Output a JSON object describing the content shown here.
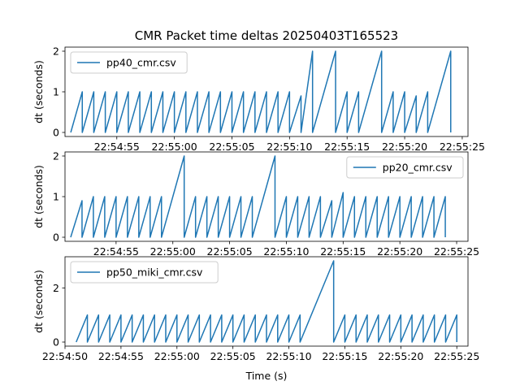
{
  "title": "CMR Packet time deltas 20250403T165523",
  "xlabel": "Time (s)",
  "colors": {
    "series": "#1f77b4",
    "axes": "#000000",
    "background": "#ffffff"
  },
  "chart_data": [
    {
      "type": "line",
      "ylabel": "dt (seconds)",
      "legend_placement": "upper-left",
      "series": [
        {
          "name": "pp40_cmr.csv",
          "x": [
            "22:54:51",
            "22:54:52",
            "22:54:52",
            "22:54:53",
            "22:54:53",
            "22:54:54",
            "22:54:54",
            "22:54:55",
            "22:54:55",
            "22:54:56",
            "22:54:56",
            "22:54:57",
            "22:54:57",
            "22:54:58",
            "22:54:58",
            "22:54:59",
            "22:54:59",
            "22:55:00",
            "22:55:00",
            "22:55:01",
            "22:55:01",
            "22:55:02",
            "22:55:02",
            "22:55:03",
            "22:55:03",
            "22:55:04",
            "22:55:04",
            "22:55:05",
            "22:55:05",
            "22:55:06",
            "22:55:06",
            "22:55:07",
            "22:55:07",
            "22:55:08",
            "22:55:08",
            "22:55:09",
            "22:55:09",
            "22:55:10",
            "22:55:10",
            "22:55:11",
            "22:55:11",
            "22:55:12",
            "22:55:12",
            "22:55:14",
            "22:55:14",
            "22:55:15",
            "22:55:15",
            "22:55:16",
            "22:55:16",
            "22:55:18",
            "22:55:18",
            "22:55:19",
            "22:55:19",
            "22:55:20",
            "22:55:20",
            "22:55:21",
            "22:55:21",
            "22:55:22",
            "22:55:22",
            "22:55:24",
            "22:55:24"
          ],
          "y": [
            0,
            1.0,
            0,
            1.0,
            0,
            1.0,
            0,
            1.0,
            0,
            1.0,
            0,
            1.0,
            0,
            1.0,
            0,
            1.0,
            0,
            1.0,
            0,
            1.0,
            0,
            1.0,
            0,
            1.0,
            0,
            1.0,
            0,
            1.0,
            0,
            1.0,
            0,
            1.0,
            0,
            1.0,
            0,
            1.0,
            0,
            1.0,
            0,
            0.9,
            0,
            2.0,
            0,
            2.0,
            0,
            1.0,
            0,
            1.0,
            0,
            2.0,
            0,
            1.0,
            0,
            1.0,
            0,
            0.9,
            0,
            1.0,
            0,
            2.0,
            0
          ]
        }
      ],
      "xlim": [
        "22:54:50.5",
        "22:55:25.5"
      ],
      "xticks": [
        "22:54:55",
        "22:55:00",
        "22:55:05",
        "22:55:10",
        "22:55:15",
        "22:55:20",
        "22:55:25"
      ],
      "ylim": [
        -0.1,
        2.1
      ],
      "yticks": [
        0,
        1,
        2
      ]
    },
    {
      "type": "line",
      "ylabel": "dt (seconds)",
      "legend_placement": "upper-right",
      "series": [
        {
          "name": "pp20_cmr.csv",
          "x": [
            "22:54:51",
            "22:54:52",
            "22:54:52",
            "22:54:53",
            "22:54:53",
            "22:54:54",
            "22:54:54",
            "22:54:55",
            "22:54:55",
            "22:54:56",
            "22:54:56",
            "22:54:57",
            "22:54:57",
            "22:54:58",
            "22:54:58",
            "22:54:59",
            "22:54:59",
            "22:55:01",
            "22:55:01",
            "22:55:02",
            "22:55:02",
            "22:55:03",
            "22:55:03",
            "22:55:04",
            "22:55:04",
            "22:55:05",
            "22:55:05",
            "22:55:06",
            "22:55:06",
            "22:55:07",
            "22:55:07",
            "22:55:09",
            "22:55:09",
            "22:55:10",
            "22:55:10",
            "22:55:11",
            "22:55:11",
            "22:55:12",
            "22:55:12",
            "22:55:13",
            "22:55:13",
            "22:55:14",
            "22:55:14",
            "22:55:15",
            "22:55:15",
            "22:55:16",
            "22:55:16",
            "22:55:17",
            "22:55:17",
            "22:55:18",
            "22:55:18",
            "22:55:19",
            "22:55:19",
            "22:55:20",
            "22:55:20",
            "22:55:21",
            "22:55:21",
            "22:55:22",
            "22:55:22",
            "22:55:23",
            "22:55:23",
            "22:55:24",
            "22:55:24"
          ],
          "y": [
            0,
            0.9,
            0,
            1.0,
            0,
            1.0,
            0,
            1.0,
            0,
            1.0,
            0,
            1.0,
            0,
            1.0,
            0,
            1.0,
            0,
            2.0,
            0,
            1.0,
            0,
            1.0,
            0,
            1.0,
            0,
            1.0,
            0,
            1.0,
            0,
            1.0,
            0,
            2.0,
            0,
            1.0,
            0,
            1.0,
            0,
            1.0,
            0,
            1.0,
            0,
            0.9,
            0,
            1.1,
            0,
            1.0,
            0,
            1.0,
            0,
            1.0,
            0,
            1.0,
            0,
            1.0,
            0,
            1.0,
            0,
            1.0,
            0,
            1.0,
            0,
            1.0,
            0
          ]
        }
      ],
      "xlim": [
        "22:54:50.5",
        "22:55:26"
      ],
      "xticks": [
        "22:54:55",
        "22:55:00",
        "22:55:05",
        "22:55:10",
        "22:55:15",
        "22:55:20",
        "22:55:25"
      ],
      "ylim": [
        -0.1,
        2.1
      ],
      "yticks": [
        0,
        1,
        2
      ]
    },
    {
      "type": "line",
      "ylabel": "dt (seconds)",
      "legend_placement": "upper-left",
      "series": [
        {
          "name": "pp50_miki_cmr.csv",
          "x": [
            "22:54:51",
            "22:54:52",
            "22:54:52",
            "22:54:53",
            "22:54:53",
            "22:54:54",
            "22:54:54",
            "22:54:55",
            "22:54:55",
            "22:54:56",
            "22:54:56",
            "22:54:57",
            "22:54:57",
            "22:54:58",
            "22:54:58",
            "22:54:59",
            "22:54:59",
            "22:55:00",
            "22:55:00",
            "22:55:01",
            "22:55:01",
            "22:55:02",
            "22:55:02",
            "22:55:03",
            "22:55:03",
            "22:55:04",
            "22:55:04",
            "22:55:05",
            "22:55:05",
            "22:55:06",
            "22:55:06",
            "22:55:07",
            "22:55:07",
            "22:55:08",
            "22:55:08",
            "22:55:09",
            "22:55:09",
            "22:55:10",
            "22:55:10",
            "22:55:11",
            "22:55:11",
            "22:55:14",
            "22:55:14",
            "22:55:15",
            "22:55:15",
            "22:55:16",
            "22:55:16",
            "22:55:17",
            "22:55:17",
            "22:55:18",
            "22:55:18",
            "22:55:19",
            "22:55:19",
            "22:55:20",
            "22:55:20",
            "22:55:21",
            "22:55:21",
            "22:55:22",
            "22:55:22",
            "22:55:23",
            "22:55:23",
            "22:55:24",
            "22:55:24",
            "22:55:25",
            "22:55:25"
          ],
          "y": [
            0,
            1.0,
            0,
            1.0,
            0,
            1.0,
            0,
            1.0,
            0,
            1.0,
            0,
            1.0,
            0,
            1.0,
            0,
            1.0,
            0,
            1.0,
            0,
            1.0,
            0,
            1.0,
            0,
            1.0,
            0,
            1.0,
            0,
            1.0,
            0,
            1.0,
            0,
            1.0,
            0,
            1.0,
            0,
            1.0,
            0,
            1.0,
            0,
            1.0,
            0,
            3.0,
            0,
            1.0,
            0,
            1.0,
            0,
            1.0,
            0,
            1.0,
            0,
            1.0,
            0,
            1.0,
            0,
            1.0,
            0,
            1.0,
            0,
            1.0,
            0,
            1.0,
            0,
            1.0,
            0
          ]
        }
      ],
      "xlim": [
        "22:54:50",
        "22:55:26"
      ],
      "xticks": [
        "22:54:50",
        "22:54:55",
        "22:55:00",
        "22:55:05",
        "22:55:10",
        "22:55:15",
        "22:55:20",
        "22:55:25"
      ],
      "ylim": [
        -0.15,
        3.15
      ],
      "yticks": [
        0,
        2
      ]
    }
  ]
}
